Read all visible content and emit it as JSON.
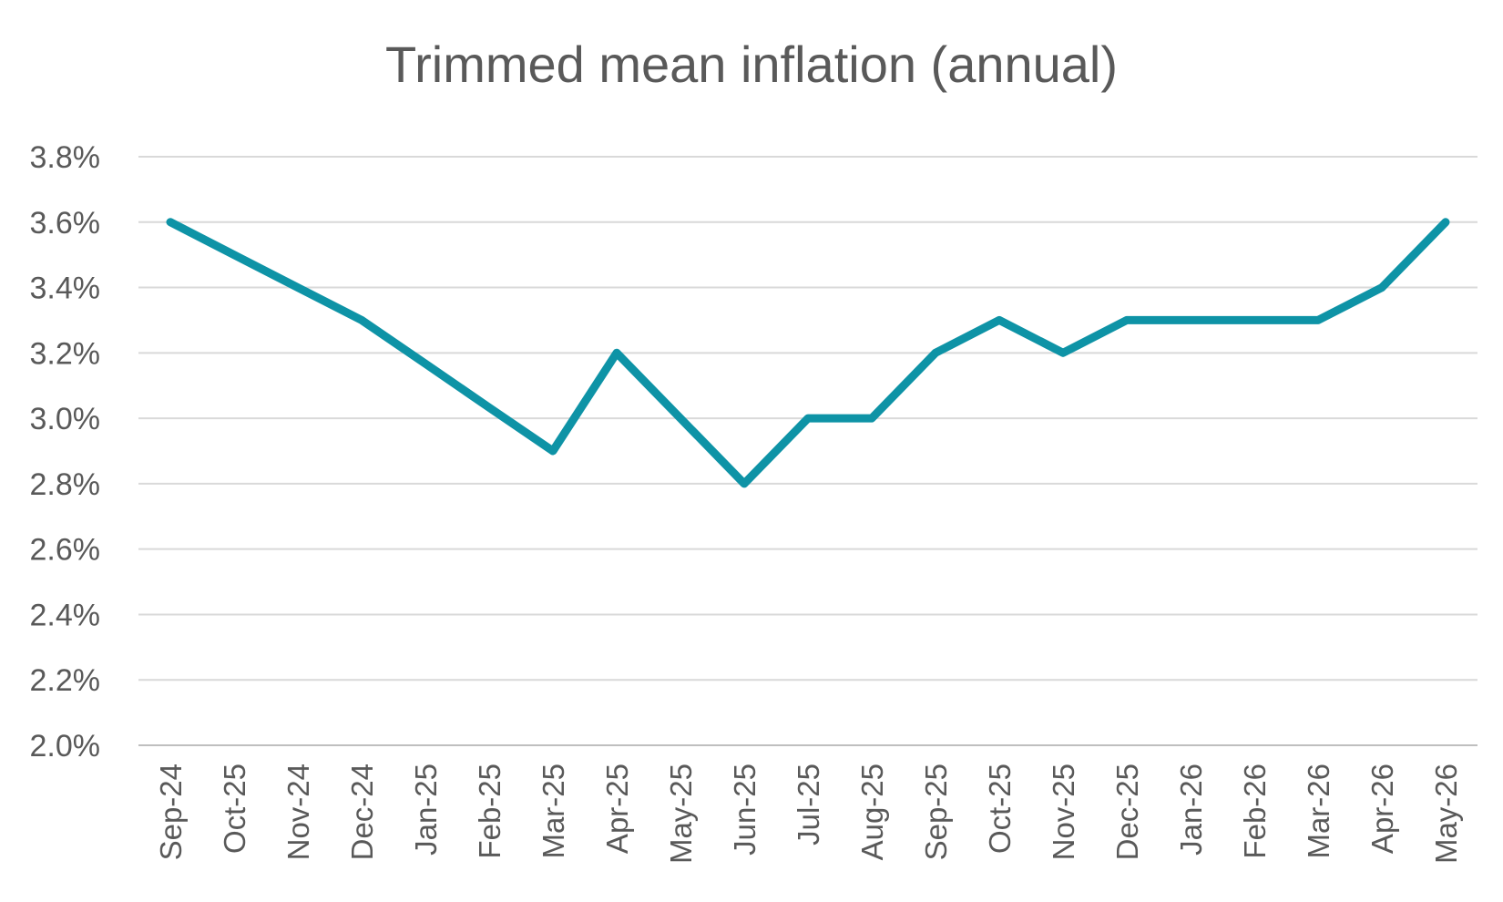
{
  "chart_data": {
    "type": "line",
    "title": "Trimmed mean inflation (annual)",
    "xlabel": "",
    "ylabel": "",
    "categories": [
      "Sep-24",
      "Oct-25",
      "Nov-24",
      "Dec-24",
      "Jan-25",
      "Feb-25",
      "Mar-25",
      "Apr-25",
      "May-25",
      "Jun-25",
      "Jul-25",
      "Aug-25",
      "Sep-25",
      "Oct-25",
      "Nov-25",
      "Dec-25",
      "Jan-26",
      "Feb-26",
      "Mar-26",
      "Apr-26",
      "May-26"
    ],
    "series": [
      {
        "values": [
          3.6,
          3.5,
          3.4,
          3.3,
          3.167,
          3.033,
          2.9,
          3.2,
          3.0,
          2.8,
          3.0,
          3.0,
          3.2,
          3.3,
          3.2,
          3.3,
          3.3,
          3.3,
          3.3,
          3.4,
          3.6
        ],
        "color": "#0e93a6"
      }
    ],
    "ylim": [
      2.0,
      3.8
    ],
    "yticks": [
      2.0,
      2.2,
      2.4,
      2.6,
      2.8,
      3.0,
      3.2,
      3.4,
      3.6,
      3.8
    ],
    "ytick_labels": [
      "2.0%",
      "2.2%",
      "2.4%",
      "2.6%",
      "2.8%",
      "3.0%",
      "3.2%",
      "3.4%",
      "3.6%",
      "3.8%"
    ],
    "grid": true,
    "legend": "none",
    "gridline_color": "#d9d9d9",
    "axis_color": "#bfbfbf",
    "text_color": "#595959"
  }
}
